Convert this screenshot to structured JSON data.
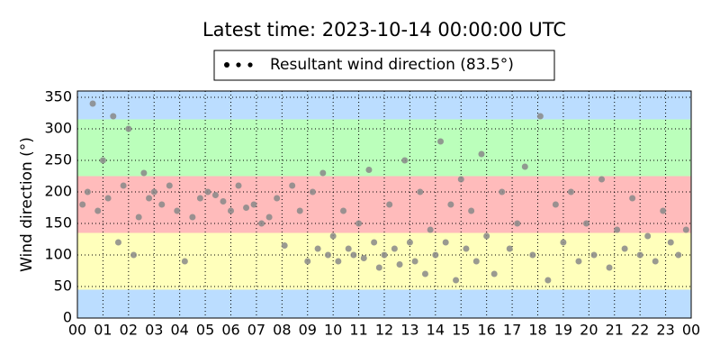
{
  "chart_data": {
    "type": "scatter",
    "title": "Latest time: 2023-10-14 00:00:00 UTC",
    "y_label": "Wind direction (°)",
    "xlim": [
      0,
      24
    ],
    "ylim": [
      0,
      360
    ],
    "xticks": [
      {
        "value": 0,
        "label": "00"
      },
      {
        "value": 1,
        "label": "01"
      },
      {
        "value": 2,
        "label": "02"
      },
      {
        "value": 3,
        "label": "03"
      },
      {
        "value": 4,
        "label": "04"
      },
      {
        "value": 5,
        "label": "05"
      },
      {
        "value": 6,
        "label": "06"
      },
      {
        "value": 7,
        "label": "07"
      },
      {
        "value": 8,
        "label": "08"
      },
      {
        "value": 9,
        "label": "09"
      },
      {
        "value": 10,
        "label": "10"
      },
      {
        "value": 11,
        "label": "11"
      },
      {
        "value": 12,
        "label": "12"
      },
      {
        "value": 13,
        "label": "13"
      },
      {
        "value": 14,
        "label": "14"
      },
      {
        "value": 15,
        "label": "15"
      },
      {
        "value": 16,
        "label": "16"
      },
      {
        "value": 17,
        "label": "17"
      },
      {
        "value": 18,
        "label": "18"
      },
      {
        "value": 19,
        "label": "19"
      },
      {
        "value": 20,
        "label": "20"
      },
      {
        "value": 21,
        "label": "21"
      },
      {
        "value": 22,
        "label": "22"
      },
      {
        "value": 23,
        "label": "23"
      },
      {
        "value": 24,
        "label": "00"
      }
    ],
    "yticks": [
      0,
      50,
      100,
      150,
      200,
      250,
      300,
      350
    ],
    "grid": true,
    "bands": [
      {
        "from": 0,
        "to": 45,
        "color": "#bbddff"
      },
      {
        "from": 45,
        "to": 135,
        "color": "#ffffbb"
      },
      {
        "from": 135,
        "to": 225,
        "color": "#ffbbbb"
      },
      {
        "from": 225,
        "to": 315,
        "color": "#bbffbb"
      },
      {
        "from": 315,
        "to": 360,
        "color": "#bbddff"
      }
    ],
    "legend_marker_color": "#000000",
    "series": [
      {
        "name": "Resultant wind direction (83.5°)",
        "color": "#888888",
        "x": [
          0.2,
          0.4,
          0.6,
          0.8,
          1.0,
          1.2,
          1.4,
          1.6,
          1.8,
          2.0,
          2.2,
          2.4,
          2.6,
          2.8,
          3.0,
          3.3,
          3.6,
          3.9,
          4.2,
          4.5,
          4.8,
          5.1,
          5.4,
          5.7,
          6.0,
          6.3,
          6.6,
          6.9,
          7.2,
          7.5,
          7.8,
          8.1,
          8.4,
          8.7,
          9.0,
          9.2,
          9.4,
          9.6,
          9.8,
          10.0,
          10.2,
          10.4,
          10.6,
          10.8,
          11.0,
          11.2,
          11.4,
          11.6,
          11.8,
          12.0,
          12.2,
          12.4,
          12.6,
          12.8,
          13.0,
          13.2,
          13.4,
          13.6,
          13.8,
          14.0,
          14.2,
          14.4,
          14.6,
          14.8,
          15.0,
          15.2,
          15.4,
          15.6,
          15.8,
          16.0,
          16.3,
          16.6,
          16.9,
          17.2,
          17.5,
          17.8,
          18.1,
          18.4,
          18.7,
          19.0,
          19.3,
          19.6,
          19.9,
          20.2,
          20.5,
          20.8,
          21.1,
          21.4,
          21.7,
          22.0,
          22.3,
          22.6,
          22.9,
          23.2,
          23.5,
          23.8
        ],
        "values": [
          180,
          200,
          340,
          170,
          250,
          190,
          320,
          120,
          210,
          300,
          100,
          160,
          230,
          190,
          200,
          180,
          210,
          170,
          90,
          160,
          190,
          200,
          195,
          185,
          170,
          210,
          175,
          180,
          150,
          160,
          190,
          115,
          210,
          170,
          90,
          200,
          110,
          230,
          100,
          130,
          90,
          170,
          110,
          100,
          150,
          95,
          235,
          120,
          80,
          100,
          180,
          110,
          85,
          250,
          120,
          90,
          200,
          70,
          140,
          100,
          280,
          120,
          180,
          60,
          220,
          110,
          170,
          90,
          260,
          130,
          70,
          200,
          110,
          150,
          240,
          100,
          320,
          60,
          180,
          120,
          200,
          90,
          150,
          100,
          220,
          80,
          140,
          110,
          190,
          100,
          130,
          90,
          170,
          120,
          100,
          140
        ]
      }
    ]
  }
}
